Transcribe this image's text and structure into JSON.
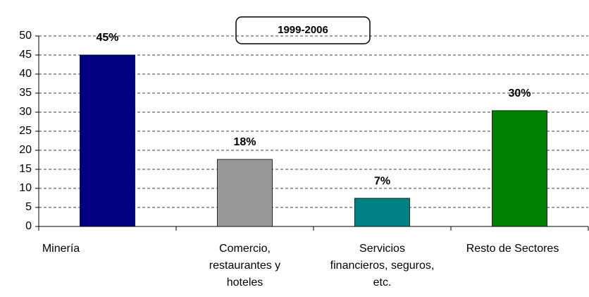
{
  "chart_data": {
    "type": "bar",
    "title": "1999-2006",
    "categories": [
      "Minería",
      "Comercio, restaurantes y hoteles",
      "Servicios financieros, seguros, etc.",
      "Resto de Sectores"
    ],
    "values": [
      45,
      17.6,
      7.4,
      30.4
    ],
    "value_labels": [
      "45%",
      "18%",
      "7%",
      "30%"
    ],
    "colors": [
      "#000080",
      "#999999",
      "#008080",
      "#008000"
    ],
    "ylim": [
      0,
      50
    ],
    "yticks": [
      0,
      5,
      10,
      15,
      20,
      25,
      30,
      35,
      40,
      45,
      50
    ],
    "grid": true
  }
}
